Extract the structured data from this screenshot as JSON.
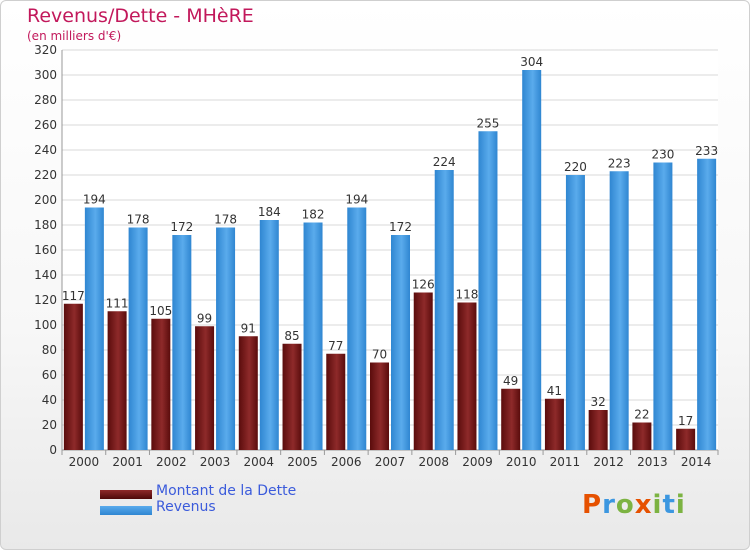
{
  "chart_data": {
    "type": "bar",
    "title": "Revenus/Dette - MHèRE",
    "subtitle": "(en milliers d'€)",
    "categories": [
      "2000",
      "2001",
      "2002",
      "2003",
      "2004",
      "2005",
      "2006",
      "2007",
      "2008",
      "2009",
      "2010",
      "2011",
      "2012",
      "2013",
      "2014"
    ],
    "series": [
      {
        "name": "Montant de la Dette",
        "values": [
          117,
          111,
          105,
          99,
          91,
          85,
          77,
          70,
          126,
          118,
          49,
          41,
          32,
          22,
          17
        ],
        "color": "#7a1a1a"
      },
      {
        "name": "Revenus",
        "values": [
          194,
          178,
          172,
          178,
          184,
          182,
          194,
          172,
          224,
          255,
          304,
          220,
          223,
          230,
          233
        ],
        "color": "#3c97e0"
      }
    ],
    "ylim": [
      0,
      320
    ],
    "yticks": [
      0,
      20,
      40,
      60,
      80,
      100,
      120,
      140,
      160,
      180,
      200,
      220,
      240,
      260,
      280,
      300,
      320
    ],
    "grid": true,
    "legend": "bottom-left"
  },
  "logo": {
    "text": "Proxiti",
    "colors": [
      "#e65100",
      "#3c97e0",
      "#7cb342",
      "#e65100",
      "#7cb342",
      "#3c97e0",
      "#7cb342"
    ]
  }
}
